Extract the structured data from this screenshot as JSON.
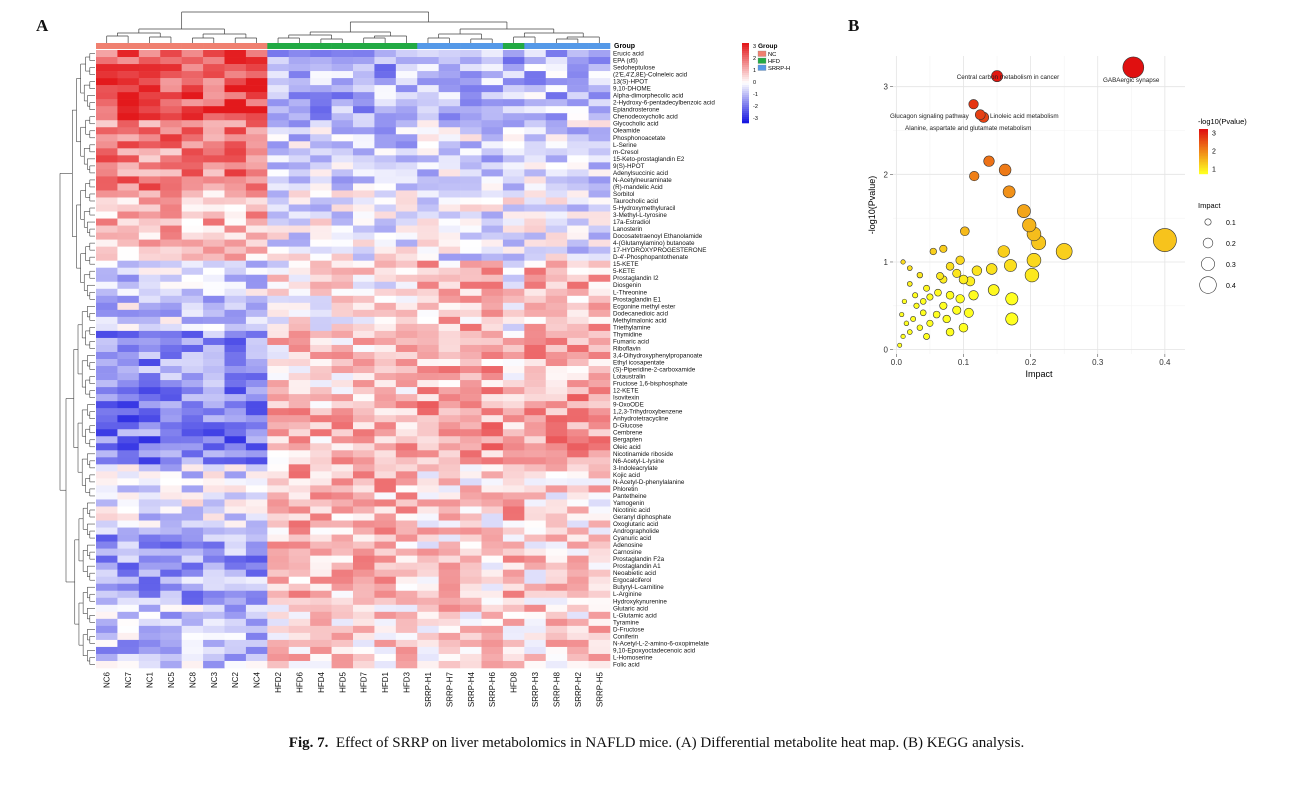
{
  "panel_a_label": "A",
  "panel_b_label": "B",
  "caption": {
    "label": "Fig. 7.",
    "text": "Effect of SRRP on liver metabolomics in NAFLD mice. (A) Differential metabolite heat map. (B) KEGG analysis."
  },
  "colors": {
    "high": "#e3191c",
    "mid": "#ffffff",
    "low": "#1818e0",
    "group_NC": "#f08070",
    "group_HFD": "#22aa44",
    "group_SRRP_H": "#5599e8",
    "bubble_low": "#ffff20",
    "bubble_high": "#e01010"
  },
  "chart_data": [
    {
      "type": "heatmap",
      "samples": [
        "NC6",
        "NC7",
        "NC1",
        "NC5",
        "NC8",
        "NC3",
        "NC2",
        "NC4",
        "HFD2",
        "HFD6",
        "HFD4",
        "HFD5",
        "HFD7",
        "HFD1",
        "HFD3",
        "SRRP-H1",
        "SRRP-H7",
        "SRRP-H4",
        "SRRP-H6",
        "HFD8",
        "SRRP-H3",
        "SRRP-H8",
        "SRRP-H2",
        "SRRP-H5"
      ],
      "sample_groups": [
        "NC",
        "NC",
        "NC",
        "NC",
        "NC",
        "NC",
        "NC",
        "NC",
        "HFD",
        "HFD",
        "HFD",
        "HFD",
        "HFD",
        "HFD",
        "HFD",
        "SRRP-H",
        "SRRP-H",
        "SRRP-H",
        "SRRP-H",
        "HFD",
        "SRRP-H",
        "SRRP-H",
        "SRRP-H",
        "SRRP-H"
      ],
      "group_label": "Group",
      "legend": {
        "title": "Group",
        "entries": [
          "NC",
          "HFD",
          "SRRP-H"
        ],
        "scale_ticks": [
          "3",
          "2",
          "1",
          "0",
          "-1",
          "-2",
          "-3"
        ]
      },
      "metabolites": [
        "Erucic acid",
        "EPA (d5)",
        "Sedoheptulose",
        "(2'E,4'Z,8E)-Colneleic acid",
        "13(S)-HPOT",
        "9,10-DHOME",
        "Alpha-dimorphecolic acid",
        "2-Hydroxy-6-pentadecylbenzoic acid",
        "Epiandrosterone",
        "Chenodeoxycholic acid",
        "Glycocholic acid",
        "Oleamide",
        "Phosphonoacetate",
        "L-Serine",
        "m-Cresol",
        "15-Keto-prostaglandin E2",
        "9(S)-HPOT",
        "Adenylsuccinic acid",
        "N-Acetylneuraminate",
        "(R)-mandelic Acid",
        "Sorbitol",
        "Taurocholic acid",
        "5-Hydroxymethyluracil",
        "3-Methyl-L-tyrosine",
        "17a-Estradiol",
        "Lanosterin",
        "Docosatetraenoyl Ethanolamide",
        "4-(Glutamylamino) butanoate",
        "17-HYDROXYPROGESTERONE",
        "D-4'-Phosphopantothenate",
        "15-KETE",
        "5-KETE",
        "Prostaglandin I2",
        "Diosgenin",
        "L-Threonine",
        "Prostaglandin E1",
        "Ecgonine methyl ester",
        "Dodecanedioic acid",
        "Methylmalonic acid",
        "Triethylamine",
        "Thymidine",
        "Fumaric acid",
        "Riboflavin",
        "3,4-Dihydroxyphenylpropanoate",
        "Ethyl icosapentate",
        "(S)-Piperidine-2-carboxamide",
        "Lotaustralin",
        "Fructose 1,6-bisphosphate",
        "12-KETE",
        "Isovitexin",
        "9-OxoODE",
        "1,2,3-Trihydroxybenzene",
        "Anhydrotetracycline",
        "D-Glucose",
        "Cembrene",
        "Bergapten",
        "Oleic acid",
        "Nicotinamide riboside",
        "N6-Acetyl-L-lysine",
        "3-Indoleacrylate",
        "Kojic acid",
        "N-Acetyl-D-phenylalanine",
        "Phloretin",
        "Pantetheine",
        "Yamogenin",
        "Nicotinic acid",
        "Geranyl diphosphate",
        "Oxoglutaric acid",
        "Andrographolide",
        "Cyanuric acid",
        "Adenosine",
        "Carnosine",
        "Prostaglandin F2a",
        "Prostaglandin A1",
        "Neoabietic acid",
        "Ergocalciferol",
        "Butyryl-L-carnitine",
        "L-Arginine",
        "Hydroxykynurenine",
        "Glutaric acid",
        "L-Glutamic acid",
        "Tyramine",
        "D-Fructose",
        "Coniferin",
        "N-Acetyl-L-2-amino-6-oxopimelate",
        "9,10-Epoxyoctadecenoic acid",
        "L-Homoserine",
        "Folic acid"
      ]
    },
    {
      "type": "scatter",
      "xlabel": "Impact",
      "ylabel": "-log10(Pvalue)",
      "xlim": [
        -0.005,
        0.43
      ],
      "ylim": [
        -0.05,
        3.35
      ],
      "xticks": [
        "0.0",
        "0.1",
        "0.2",
        "0.3",
        "0.4"
      ],
      "yticks": [
        "0",
        "1",
        "2",
        "3"
      ],
      "color_legend": {
        "title": "-log10(Pvalue)",
        "ticks": [
          "3",
          "2",
          "1"
        ]
      },
      "size_legend": {
        "title": "Impact",
        "ticks": [
          "0.1",
          "0.2",
          "0.3",
          "0.4"
        ]
      },
      "points": [
        {
          "x": 0.353,
          "y": 3.22,
          "label": "GABAergic synapse"
        },
        {
          "x": 0.15,
          "y": 3.12,
          "label": "Central carbon metabolism in cancer"
        },
        {
          "x": 0.115,
          "y": 2.8,
          "label": "Glucagon signaling pathway"
        },
        {
          "x": 0.125,
          "y": 2.68,
          "label": "Linoleic acid metabolism"
        },
        {
          "x": 0.13,
          "y": 2.65,
          "label": "Alanine, aspartate and glutamate metabolism"
        },
        {
          "x": 0.138,
          "y": 2.15
        },
        {
          "x": 0.162,
          "y": 2.05
        },
        {
          "x": 0.116,
          "y": 1.98
        },
        {
          "x": 0.168,
          "y": 1.8
        },
        {
          "x": 0.19,
          "y": 1.58
        },
        {
          "x": 0.198,
          "y": 1.42
        },
        {
          "x": 0.205,
          "y": 1.32
        },
        {
          "x": 0.212,
          "y": 1.22
        },
        {
          "x": 0.25,
          "y": 1.12
        },
        {
          "x": 0.4,
          "y": 1.25
        },
        {
          "x": 0.102,
          "y": 1.35
        },
        {
          "x": 0.16,
          "y": 1.12
        },
        {
          "x": 0.205,
          "y": 1.02
        },
        {
          "x": 0.17,
          "y": 0.96
        },
        {
          "x": 0.202,
          "y": 0.85
        },
        {
          "x": 0.142,
          "y": 0.92
        },
        {
          "x": 0.145,
          "y": 0.68
        },
        {
          "x": 0.172,
          "y": 0.58
        },
        {
          "x": 0.172,
          "y": 0.35
        },
        {
          "x": 0.095,
          "y": 1.02
        },
        {
          "x": 0.07,
          "y": 1.15
        },
        {
          "x": 0.12,
          "y": 0.9
        },
        {
          "x": 0.08,
          "y": 0.95
        },
        {
          "x": 0.01,
          "y": 1.0
        },
        {
          "x": 0.02,
          "y": 0.93
        },
        {
          "x": 0.055,
          "y": 1.12
        },
        {
          "x": 0.065,
          "y": 0.84
        },
        {
          "x": 0.09,
          "y": 0.87
        },
        {
          "x": 0.1,
          "y": 0.8
        },
        {
          "x": 0.11,
          "y": 0.78
        },
        {
          "x": 0.115,
          "y": 0.62
        },
        {
          "x": 0.095,
          "y": 0.58
        },
        {
          "x": 0.08,
          "y": 0.62
        },
        {
          "x": 0.062,
          "y": 0.65
        },
        {
          "x": 0.045,
          "y": 0.7
        },
        {
          "x": 0.05,
          "y": 0.6
        },
        {
          "x": 0.04,
          "y": 0.55
        },
        {
          "x": 0.07,
          "y": 0.5
        },
        {
          "x": 0.09,
          "y": 0.45
        },
        {
          "x": 0.108,
          "y": 0.42
        },
        {
          "x": 0.06,
          "y": 0.4
        },
        {
          "x": 0.04,
          "y": 0.42
        },
        {
          "x": 0.03,
          "y": 0.5
        },
        {
          "x": 0.025,
          "y": 0.35
        },
        {
          "x": 0.05,
          "y": 0.3
        },
        {
          "x": 0.035,
          "y": 0.25
        },
        {
          "x": 0.02,
          "y": 0.2
        },
        {
          "x": 0.015,
          "y": 0.3
        },
        {
          "x": 0.01,
          "y": 0.15
        },
        {
          "x": 0.005,
          "y": 0.05
        },
        {
          "x": 0.008,
          "y": 0.4
        },
        {
          "x": 0.028,
          "y": 0.62
        },
        {
          "x": 0.075,
          "y": 0.35
        },
        {
          "x": 0.045,
          "y": 0.15
        },
        {
          "x": 0.07,
          "y": 0.8
        },
        {
          "x": 0.012,
          "y": 0.55
        },
        {
          "x": 0.1,
          "y": 0.25
        },
        {
          "x": 0.08,
          "y": 0.2
        },
        {
          "x": 0.02,
          "y": 0.75
        },
        {
          "x": 0.035,
          "y": 0.85
        }
      ]
    }
  ]
}
